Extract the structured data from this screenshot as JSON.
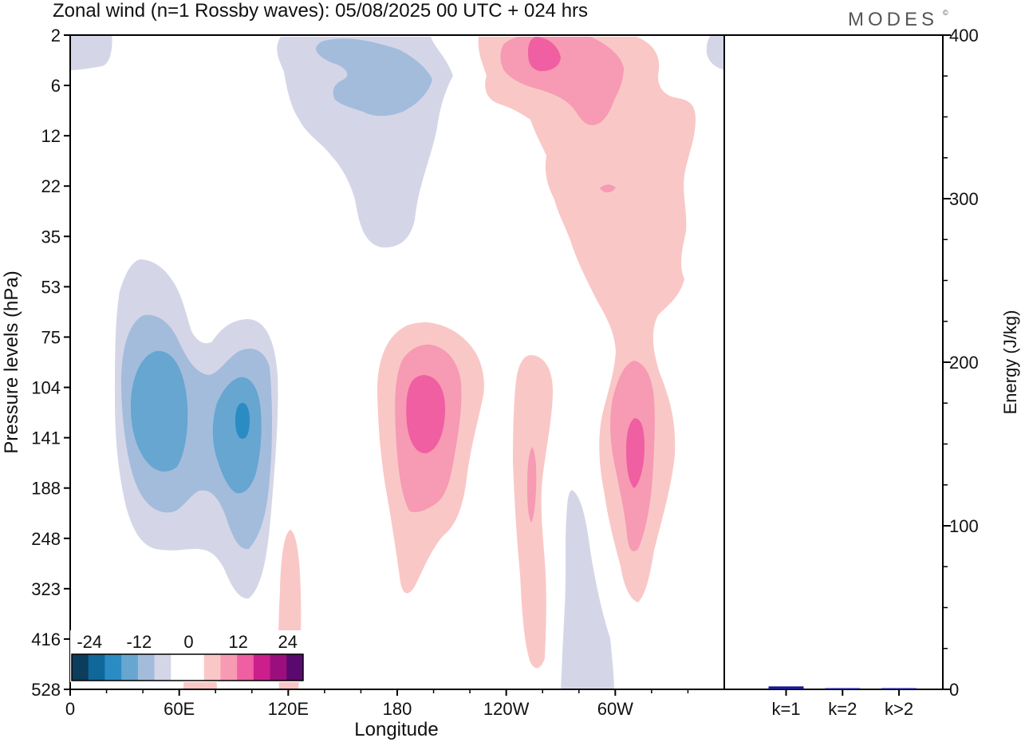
{
  "title": "Zonal wind (n=1 Rossby waves):  05/08/2025  00 UTC  + 024 hrs",
  "brand": "MODES",
  "brand_mark": "©",
  "chart_data": [
    {
      "type": "contour",
      "title": "Zonal wind (n=1 Rossby waves)",
      "xlabel": "Longitude",
      "ylabel": "Pressure levels (hPa)",
      "x_ticks": [
        {
          "lon": 0,
          "label": "0"
        },
        {
          "lon": 60,
          "label": "60E"
        },
        {
          "lon": 120,
          "label": "120E"
        },
        {
          "lon": 180,
          "label": "180"
        },
        {
          "lon": 240,
          "label": "120W"
        },
        {
          "lon": 300,
          "label": "60W"
        }
      ],
      "xlim": [
        0,
        360
      ],
      "y_levels": [
        "2",
        "6",
        "12",
        "22",
        "35",
        "53",
        "75",
        "104",
        "141",
        "188",
        "248",
        "323",
        "416",
        "528"
      ],
      "colorbar": {
        "tick_labels": [
          "-24",
          "-12",
          "0",
          "12",
          "24"
        ],
        "colors": [
          "#0d3d5c",
          "#10689a",
          "#2b8cc4",
          "#66a6d0",
          "#a3bcdc",
          "#d4d6e8",
          "#ffffff",
          "#ffffff",
          "#f9c8c6",
          "#f79ab3",
          "#ef5fa1",
          "#cc1f8c",
          "#9b0e7e",
          "#5a0a6e"
        ]
      },
      "features": [
        {
          "sign": "negative",
          "peak": -15,
          "lon_center": 40,
          "level_top": "35",
          "level_bottom": "323"
        },
        {
          "sign": "negative",
          "peak": -9,
          "lon_center": 165,
          "level_top": "2",
          "level_bottom": "35"
        },
        {
          "sign": "negative",
          "peak": -3,
          "lon_center": 283,
          "level_top": "188",
          "level_bottom": "528"
        },
        {
          "sign": "positive",
          "peak": 12,
          "lon_center": 190,
          "level_top": "75",
          "level_bottom": "323"
        },
        {
          "sign": "positive",
          "peak": 9,
          "lon_center": 255,
          "level_top": "2",
          "level_bottom": "188"
        },
        {
          "sign": "positive",
          "peak": 12,
          "lon_center": 310,
          "level_top": "104",
          "level_bottom": "323"
        },
        {
          "sign": "positive",
          "peak": 6,
          "lon_center": 253,
          "level_top": "104",
          "level_bottom": "416"
        },
        {
          "sign": "positive",
          "peak": 3,
          "lon_center": 120,
          "level_top": "248",
          "level_bottom": "528"
        }
      ]
    },
    {
      "type": "bar",
      "ylabel": "Energy (J/kg)",
      "ylim": [
        0,
        400
      ],
      "y_ticks": [
        {
          "value": 0,
          "label": "0"
        },
        {
          "value": 100,
          "label": "100"
        },
        {
          "value": 200,
          "label": "200"
        },
        {
          "value": 300,
          "label": "300"
        },
        {
          "value": 400,
          "label": "400"
        }
      ],
      "categories": [
        "k=1",
        "k=2",
        "k>2"
      ],
      "values": [
        1.8,
        0.6,
        0.6
      ],
      "bar_color": "#1a1a8c"
    }
  ]
}
